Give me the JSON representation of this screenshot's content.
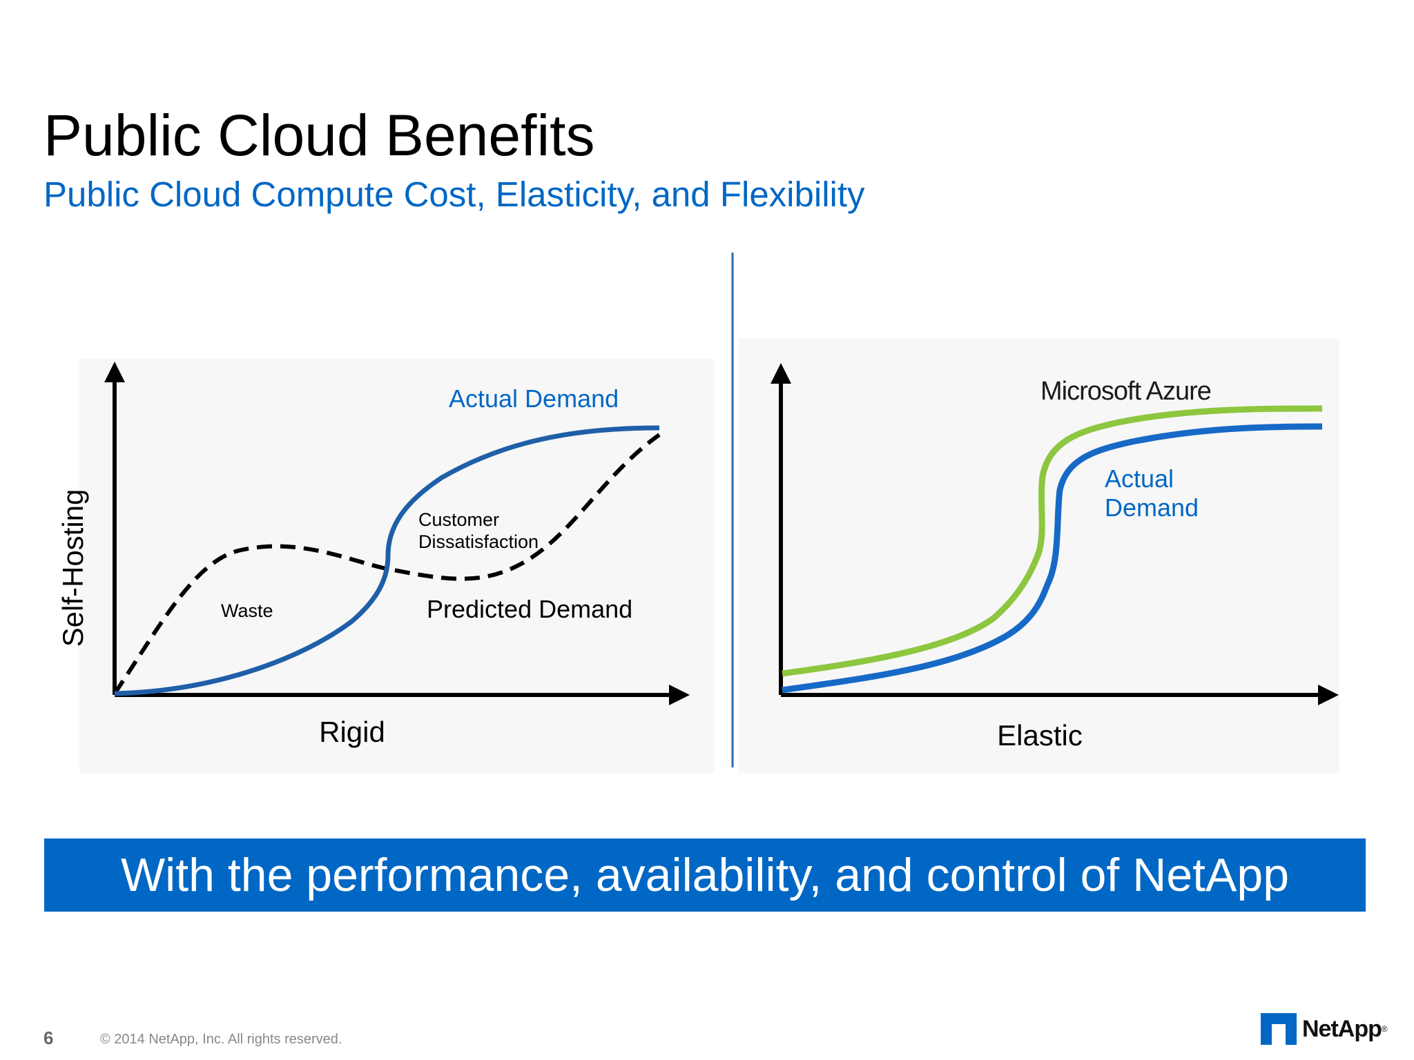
{
  "title": "Public Cloud Benefits",
  "subtitle": "Public Cloud Compute Cost, Elasticity, and Flexibility",
  "colors": {
    "accent_blue": "#0067c5",
    "curve_blue": "#1f5fa8",
    "azure_green": "#8dc63f",
    "banner": "#0067c5"
  },
  "left_diagram": {
    "y_axis_label": "Self-Hosting",
    "x_axis_label": "Rigid",
    "actual_demand_label": "Actual Demand",
    "predicted_demand_label": "Predicted Demand",
    "waste_label": "Waste",
    "dissatisfaction_line1": "Customer",
    "dissatisfaction_line2": "Dissatisfaction"
  },
  "right_diagram": {
    "x_axis_label": "Elastic",
    "azure_label": "Microsoft Azure",
    "actual_line1": "Actual",
    "actual_line2": "Demand"
  },
  "banner_text": "With the performance, availability, and control of NetApp",
  "footer": {
    "page_number": "6",
    "copyright": "© 2014 NetApp, Inc. All rights reserved.",
    "logo_text": "NetApp",
    "logo_mark": "®"
  }
}
